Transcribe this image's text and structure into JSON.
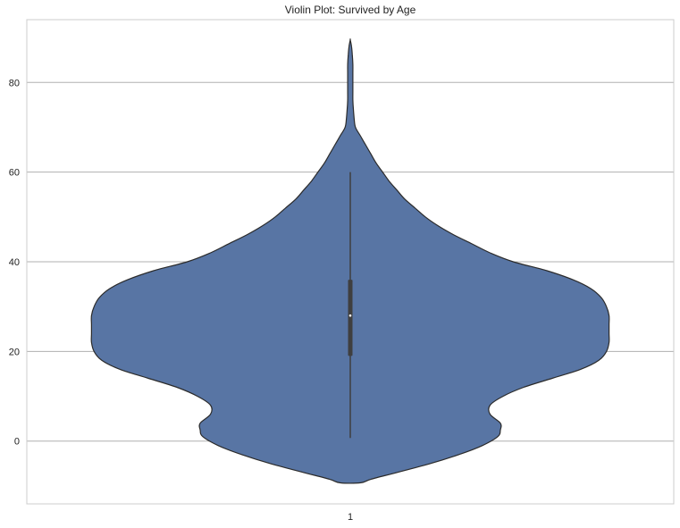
{
  "chart_data": {
    "type": "violin",
    "title": "Violin Plot: Survived by Age",
    "xlabel": "",
    "ylabel": "",
    "categories": [
      "1"
    ],
    "ylim": [
      -14,
      94
    ],
    "yticks": [
      0,
      20,
      40,
      60,
      80
    ],
    "grid": true,
    "colors": {
      "fill": "#5875a4",
      "edge": "#2b2b2b",
      "box": "#3f3f3f",
      "median": "#ffffff",
      "grid": "#b0b0b0",
      "spine": "#cccccc"
    },
    "series": [
      {
        "category": "1",
        "density": {
          "y": [
            -9.3,
            -8.5,
            -7.0,
            -5.0,
            -3.0,
            -1.0,
            1.0,
            2.5,
            4.0,
            6.0,
            8.0,
            10.0,
            12.0,
            14.0,
            16.0,
            18.0,
            20.0,
            22.0,
            24.0,
            26.0,
            28.0,
            30.0,
            32.0,
            34.0,
            36.0,
            38.0,
            40.0,
            42.0,
            44.0,
            46.0,
            48.0,
            50.0,
            52.0,
            54.0,
            56.0,
            58.0,
            60.0,
            62.0,
            64.0,
            66.0,
            68.0,
            70.0,
            72.0,
            74.0,
            76.0,
            78.0,
            80.0,
            82.0,
            84.0,
            86.0,
            88.0,
            89.5
          ],
          "halfwidth": [
            0.04,
            0.08,
            0.18,
            0.31,
            0.42,
            0.51,
            0.57,
            0.58,
            0.58,
            0.54,
            0.54,
            0.59,
            0.67,
            0.78,
            0.89,
            0.96,
            0.99,
            1.0,
            1.0,
            1.0,
            1.0,
            0.99,
            0.97,
            0.93,
            0.86,
            0.76,
            0.63,
            0.54,
            0.47,
            0.4,
            0.34,
            0.29,
            0.25,
            0.21,
            0.18,
            0.15,
            0.125,
            0.1,
            0.08,
            0.06,
            0.04,
            0.02,
            0.015,
            0.012,
            0.01,
            0.01,
            0.01,
            0.01,
            0.01,
            0.008,
            0.005,
            0.0
          ]
        },
        "whisker_low": 0.7,
        "q1": 19,
        "median": 28,
        "q3": 36,
        "whisker_high": 60
      }
    ]
  }
}
